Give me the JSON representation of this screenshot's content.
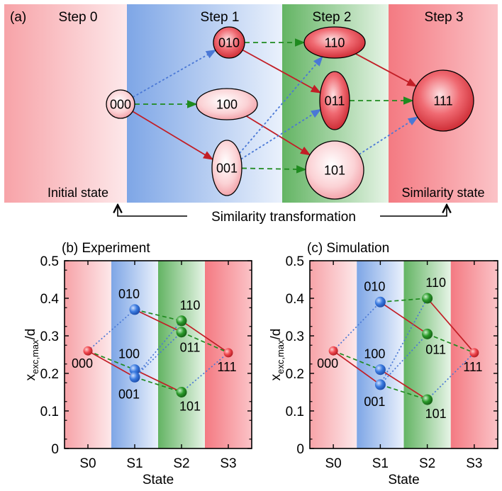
{
  "colors": {
    "red_band": "#f7a3a8",
    "blue_band": "#7ea6e6",
    "green_band": "#63b463",
    "red_arrow": "#c21e26",
    "green_arrow": "#1f8a1f",
    "blue_arrow": "#4a78d6"
  },
  "panel_a": {
    "label": "(a)",
    "steps": [
      "Step 0",
      "Step 1",
      "Step 2",
      "Step 3"
    ],
    "nodes": [
      {
        "id": "000",
        "label": "000",
        "fill": "light"
      },
      {
        "id": "010",
        "label": "010",
        "fill": "dark"
      },
      {
        "id": "100",
        "label": "100",
        "fill": "light"
      },
      {
        "id": "001",
        "label": "001",
        "fill": "light"
      },
      {
        "id": "110",
        "label": "110",
        "fill": "dark"
      },
      {
        "id": "011",
        "label": "011",
        "fill": "dark"
      },
      {
        "id": "101",
        "label": "101",
        "fill": "light"
      },
      {
        "id": "111",
        "label": "111",
        "fill": "dark"
      }
    ],
    "edges": [
      {
        "from": "000",
        "to": "010",
        "style": "blue"
      },
      {
        "from": "000",
        "to": "100",
        "style": "green"
      },
      {
        "from": "000",
        "to": "001",
        "style": "red"
      },
      {
        "from": "010",
        "to": "110",
        "style": "green"
      },
      {
        "from": "010",
        "to": "011",
        "style": "red"
      },
      {
        "from": "100",
        "to": "101",
        "style": "red"
      },
      {
        "from": "001",
        "to": "110",
        "style": "blue"
      },
      {
        "from": "001",
        "to": "011",
        "style": "blue"
      },
      {
        "from": "001",
        "to": "101",
        "style": "green"
      },
      {
        "from": "110",
        "to": "111",
        "style": "red"
      },
      {
        "from": "011",
        "to": "111",
        "style": "green"
      },
      {
        "from": "101",
        "to": "111",
        "style": "blue"
      }
    ],
    "initial_label": "Initial state",
    "final_label": "Similarity state",
    "transform_label": "Similarity transformation"
  },
  "chart_data": [
    {
      "type": "line",
      "title": "(b) Experiment",
      "xlabel": "State",
      "ylabel": "x",
      "ylabel_sub": "exc,max",
      "ylabel_suffix": "/d",
      "categories": [
        "S0",
        "S1",
        "S2",
        "S3"
      ],
      "ylim": [
        0,
        0.5
      ],
      "yticks": [
        "0",
        "0.1",
        "0.2",
        "0.3",
        "0.4",
        "0.5"
      ],
      "points": [
        {
          "id": "000",
          "label": "000",
          "x": 0,
          "y": 0.26
        },
        {
          "id": "010",
          "label": "010",
          "x": 1,
          "y": 0.37
        },
        {
          "id": "100",
          "label": "100",
          "x": 1,
          "y": 0.21
        },
        {
          "id": "001",
          "label": "001",
          "x": 1,
          "y": 0.19
        },
        {
          "id": "110",
          "label": "110",
          "x": 2,
          "y": 0.34
        },
        {
          "id": "011",
          "label": "011",
          "x": 2,
          "y": 0.31
        },
        {
          "id": "101",
          "label": "101",
          "x": 2,
          "y": 0.15
        },
        {
          "id": "111",
          "label": "111",
          "x": 3,
          "y": 0.255
        }
      ],
      "edges": [
        {
          "from": "000",
          "to": "010",
          "style": "blue"
        },
        {
          "from": "000",
          "to": "100",
          "style": "green"
        },
        {
          "from": "000",
          "to": "001",
          "style": "red"
        },
        {
          "from": "010",
          "to": "110",
          "style": "green"
        },
        {
          "from": "010",
          "to": "011",
          "style": "red"
        },
        {
          "from": "100",
          "to": "101",
          "style": "red"
        },
        {
          "from": "001",
          "to": "110",
          "style": "blue"
        },
        {
          "from": "001",
          "to": "011",
          "style": "blue"
        },
        {
          "from": "001",
          "to": "101",
          "style": "green"
        },
        {
          "from": "110",
          "to": "111",
          "style": "red"
        },
        {
          "from": "011",
          "to": "111",
          "style": "green"
        },
        {
          "from": "101",
          "to": "111",
          "style": "blue"
        }
      ]
    },
    {
      "type": "line",
      "title": "(c) Simulation",
      "xlabel": "State",
      "ylabel": "x",
      "ylabel_sub": "exc,max",
      "ylabel_suffix": "/d",
      "categories": [
        "S0",
        "S1",
        "S2",
        "S3"
      ],
      "ylim": [
        0,
        0.5
      ],
      "yticks": [
        "0",
        "0.1",
        "0.2",
        "0.3",
        "0.4",
        "0.5"
      ],
      "points": [
        {
          "id": "000",
          "label": "000",
          "x": 0,
          "y": 0.26
        },
        {
          "id": "010",
          "label": "010",
          "x": 1,
          "y": 0.39
        },
        {
          "id": "100",
          "label": "100",
          "x": 1,
          "y": 0.21
        },
        {
          "id": "001",
          "label": "001",
          "x": 1,
          "y": 0.17
        },
        {
          "id": "110",
          "label": "110",
          "x": 2,
          "y": 0.4
        },
        {
          "id": "011",
          "label": "011",
          "x": 2,
          "y": 0.305
        },
        {
          "id": "101",
          "label": "101",
          "x": 2,
          "y": 0.13
        },
        {
          "id": "111",
          "label": "111",
          "x": 3,
          "y": 0.255
        }
      ],
      "edges": [
        {
          "from": "000",
          "to": "010",
          "style": "blue"
        },
        {
          "from": "000",
          "to": "100",
          "style": "green"
        },
        {
          "from": "000",
          "to": "001",
          "style": "red"
        },
        {
          "from": "010",
          "to": "110",
          "style": "green"
        },
        {
          "from": "010",
          "to": "011",
          "style": "red"
        },
        {
          "from": "100",
          "to": "101",
          "style": "red"
        },
        {
          "from": "001",
          "to": "110",
          "style": "blue"
        },
        {
          "from": "001",
          "to": "011",
          "style": "blue"
        },
        {
          "from": "001",
          "to": "101",
          "style": "green"
        },
        {
          "from": "110",
          "to": "111",
          "style": "red"
        },
        {
          "from": "011",
          "to": "111",
          "style": "green"
        },
        {
          "from": "101",
          "to": "111",
          "style": "blue"
        }
      ]
    }
  ]
}
